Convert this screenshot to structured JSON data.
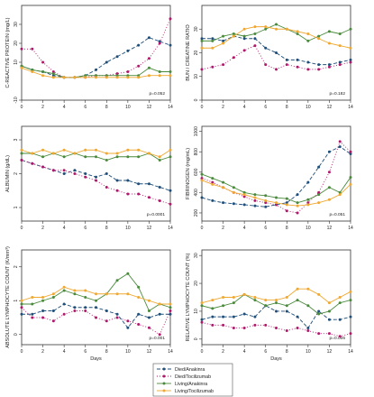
{
  "series_styles": [
    {
      "name": "Died/Anakinra",
      "color": "#1f4e79",
      "dash": "4,2"
    },
    {
      "name": "Died/Tocilizumab",
      "color": "#b0196b",
      "dash": "1,2"
    },
    {
      "name": "Living/Anakinra",
      "color": "#4a8a3c",
      "dash": ""
    },
    {
      "name": "Living/Tocilizumab",
      "color": "#f0a830",
      "dash": ""
    }
  ],
  "chart_data": [
    {
      "type": "line",
      "ylabel": "C-REACTIVE PROTEIN (mg/L)",
      "yticks": [
        -10,
        10,
        20,
        30
      ],
      "ylim": [
        -10,
        40
      ],
      "xticks": [
        0,
        2,
        4,
        6,
        8,
        10,
        12,
        14
      ],
      "xlim": [
        0,
        14
      ],
      "pvalue": "p=0.052",
      "xlabel": "",
      "x": [
        0,
        1,
        2,
        3,
        4,
        5,
        6,
        7,
        8,
        9,
        10,
        11,
        12,
        13,
        14
      ],
      "series": [
        {
          "values": [
            8,
            6,
            5,
            3,
            2,
            2,
            3,
            6,
            10,
            13,
            16,
            19,
            23,
            21,
            19
          ]
        },
        {
          "values": [
            17,
            17,
            10,
            5,
            2,
            2,
            2,
            3,
            3,
            4,
            5,
            8,
            12,
            20,
            33
          ]
        },
        {
          "values": [
            8,
            6,
            5,
            4,
            2,
            2,
            3,
            3,
            3,
            3,
            3,
            3,
            7,
            5,
            5
          ]
        },
        {
          "values": [
            7,
            5,
            3,
            2,
            2,
            2,
            2,
            2,
            2,
            2,
            2,
            2,
            3,
            3,
            3
          ]
        }
      ]
    },
    {
      "type": "line",
      "ylabel": "BUN / CREATINE RATIO",
      "yticks": [
        0,
        10,
        20,
        30
      ],
      "ylim": [
        0,
        40
      ],
      "xticks": [
        0,
        2,
        4,
        6,
        8,
        10,
        12,
        14
      ],
      "xlim": [
        0,
        14
      ],
      "pvalue": "p=0.182",
      "xlabel": "",
      "x": [
        0,
        1,
        2,
        3,
        4,
        5,
        6,
        7,
        8,
        9,
        10,
        11,
        12,
        13,
        14
      ],
      "series": [
        {
          "values": [
            26,
            26,
            25,
            27,
            26,
            26,
            22,
            20,
            17,
            17,
            16,
            15,
            15,
            16,
            17
          ]
        },
        {
          "values": [
            13,
            14,
            15,
            18,
            21,
            23,
            15,
            13,
            15,
            14,
            13,
            13,
            14,
            15,
            16
          ]
        },
        {
          "values": [
            25,
            25,
            27,
            28,
            27,
            28,
            30,
            32,
            30,
            28,
            25,
            27,
            29,
            28,
            30
          ]
        },
        {
          "values": [
            22,
            22,
            24,
            27,
            30,
            31,
            31,
            30,
            30,
            29,
            28,
            26,
            24,
            23,
            22
          ]
        }
      ]
    },
    {
      "type": "line",
      "ylabel": "ALBUMIN (g/dL)",
      "yticks": [
        1,
        2,
        3
      ],
      "ylim": [
        0.6,
        3.4
      ],
      "xticks": [
        0,
        2,
        4,
        6,
        8,
        10,
        12,
        14
      ],
      "xlim": [
        0,
        14
      ],
      "pvalue": "p=0.0001",
      "xlabel": "",
      "x": [
        0,
        1,
        2,
        3,
        4,
        5,
        6,
        7,
        8,
        9,
        10,
        11,
        12,
        13,
        14
      ],
      "series": [
        {
          "values": [
            2.4,
            2.3,
            2.2,
            2.1,
            2.0,
            2.1,
            2.0,
            1.9,
            2.0,
            1.8,
            1.8,
            1.7,
            1.7,
            1.6,
            1.5
          ]
        },
        {
          "values": [
            2.4,
            2.3,
            2.2,
            2.1,
            2.1,
            2.0,
            1.9,
            1.8,
            1.6,
            1.5,
            1.4,
            1.4,
            1.3,
            1.2,
            1.1
          ]
        },
        {
          "values": [
            2.6,
            2.6,
            2.5,
            2.6,
            2.5,
            2.6,
            2.5,
            2.5,
            2.4,
            2.5,
            2.5,
            2.5,
            2.6,
            2.4,
            2.5
          ]
        },
        {
          "values": [
            2.7,
            2.6,
            2.7,
            2.6,
            2.7,
            2.6,
            2.7,
            2.7,
            2.6,
            2.6,
            2.7,
            2.7,
            2.6,
            2.5,
            2.7
          ]
        }
      ]
    },
    {
      "type": "line",
      "ylabel": "FIBRINOGEN (mg/mL)",
      "yticks": [
        200,
        400,
        600,
        800,
        1000
      ],
      "ylim": [
        120,
        1050
      ],
      "xticks": [
        0,
        2,
        4,
        6,
        8,
        10,
        12,
        14
      ],
      "xlim": [
        0,
        14
      ],
      "pvalue": "p=0.051",
      "xlabel": "",
      "x": [
        0,
        1,
        2,
        3,
        4,
        5,
        6,
        7,
        8,
        9,
        10,
        11,
        12,
        13,
        14
      ],
      "series": [
        {
          "values": [
            350,
            320,
            300,
            290,
            280,
            270,
            260,
            280,
            300,
            380,
            500,
            650,
            800,
            850,
            780
          ]
        },
        {
          "values": [
            540,
            500,
            450,
            400,
            360,
            320,
            300,
            280,
            220,
            200,
            300,
            400,
            600,
            900,
            800
          ]
        },
        {
          "values": [
            580,
            540,
            500,
            450,
            400,
            380,
            370,
            350,
            340,
            300,
            330,
            380,
            450,
            400,
            550
          ]
        },
        {
          "values": [
            520,
            480,
            450,
            400,
            380,
            350,
            320,
            300,
            280,
            270,
            280,
            300,
            330,
            380,
            480
          ]
        }
      ]
    },
    {
      "type": "line",
      "ylabel": "ABSOLUTE LYMPHOCYTE COUNT (K/mm³)",
      "yticks": [
        0,
        1,
        2
      ],
      "ylim": [
        -0.3,
        2.5
      ],
      "xticks": [
        0,
        2,
        4,
        6,
        8,
        10,
        12,
        14
      ],
      "xlim": [
        0,
        14
      ],
      "pvalue": "p=0.001",
      "xlabel": "Days",
      "x": [
        0,
        1,
        2,
        3,
        4,
        5,
        6,
        7,
        8,
        9,
        10,
        11,
        12,
        13,
        14
      ],
      "series": [
        {
          "values": [
            0.6,
            0.6,
            0.7,
            0.7,
            0.9,
            0.8,
            0.8,
            0.8,
            0.7,
            0.6,
            0.2,
            0.6,
            0.5,
            0.6,
            0.6
          ]
        },
        {
          "values": [
            0.8,
            0.5,
            0.5,
            0.4,
            0.6,
            0.7,
            0.7,
            0.5,
            0.4,
            0.5,
            0.4,
            0.3,
            0.2,
            0.0,
            0.7
          ]
        },
        {
          "values": [
            0.9,
            0.9,
            1.0,
            1.1,
            1.3,
            1.2,
            1.1,
            1.0,
            1.2,
            1.6,
            1.8,
            1.4,
            0.7,
            0.9,
            0.8
          ]
        },
        {
          "values": [
            1.0,
            1.1,
            1.1,
            1.2,
            1.4,
            1.3,
            1.3,
            1.2,
            1.2,
            1.2,
            1.2,
            1.1,
            1.0,
            0.9,
            0.9
          ]
        }
      ]
    },
    {
      "type": "line",
      "ylabel": "RELATIVE LYMPHOCYTE COUNT (%)",
      "yticks": [
        0,
        10,
        20,
        30
      ],
      "ylim": [
        -2,
        32
      ],
      "xticks": [
        0,
        2,
        4,
        6,
        8,
        10,
        12,
        14
      ],
      "xlim": [
        0,
        14
      ],
      "pvalue": "p=0.006",
      "xlabel": "Days",
      "x": [
        0,
        1,
        2,
        3,
        4,
        5,
        6,
        7,
        8,
        9,
        10,
        11,
        12,
        13,
        14
      ],
      "series": [
        {
          "values": [
            7,
            8,
            8,
            8,
            9,
            8,
            12,
            10,
            10,
            8,
            4,
            10,
            7,
            7,
            8
          ]
        },
        {
          "values": [
            6,
            5,
            5,
            4,
            4,
            5,
            5,
            4,
            3,
            4,
            3,
            2,
            2,
            1,
            2
          ]
        },
        {
          "values": [
            12,
            11,
            12,
            13,
            16,
            14,
            12,
            13,
            12,
            14,
            12,
            9,
            10,
            13,
            14
          ]
        },
        {
          "values": [
            13,
            14,
            15,
            15,
            16,
            15,
            14,
            14,
            15,
            18,
            18,
            16,
            13,
            15,
            17
          ]
        }
      ]
    }
  ],
  "legend": {
    "entries": [
      "Died/Anakinra",
      "Died/Tocilizumab",
      "Living/Anakinra",
      "Living/Tocilizumab"
    ]
  }
}
